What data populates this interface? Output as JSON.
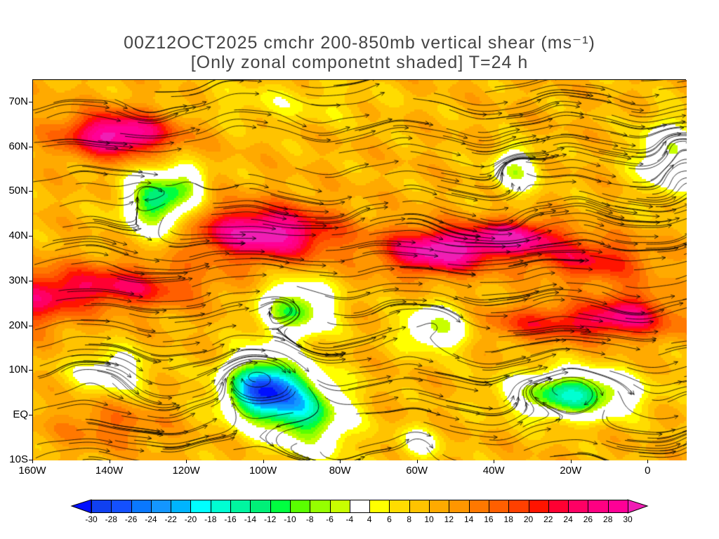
{
  "title": {
    "line1": "00Z12OCT2025 cmchr 200-850mb vertical shear (ms⁻¹)",
    "line2": "[Only zonal componetnt shaded] T=24 h"
  },
  "map": {
    "lon_range": [
      -160,
      10
    ],
    "lat_range": [
      -10,
      75
    ],
    "lat_ticks": [
      {
        "value": 70,
        "label": "70N"
      },
      {
        "value": 60,
        "label": "60N"
      },
      {
        "value": 50,
        "label": "50N"
      },
      {
        "value": 40,
        "label": "40N"
      },
      {
        "value": 30,
        "label": "30N"
      },
      {
        "value": 20,
        "label": "20N"
      },
      {
        "value": 10,
        "label": "10N"
      },
      {
        "value": 0,
        "label": "EQ"
      },
      {
        "value": -10,
        "label": "10S"
      }
    ],
    "lon_ticks": [
      {
        "value": -160,
        "label": "160W"
      },
      {
        "value": -140,
        "label": "140W"
      },
      {
        "value": -120,
        "label": "120W"
      },
      {
        "value": -100,
        "label": "100W"
      },
      {
        "value": -80,
        "label": "80W"
      },
      {
        "value": -60,
        "label": "60W"
      },
      {
        "value": -40,
        "label": "40W"
      },
      {
        "value": -20,
        "label": "20W"
      },
      {
        "value": 0,
        "label": "0"
      }
    ]
  },
  "colorbar": {
    "labels": [
      "-30",
      "-28",
      "-26",
      "-24",
      "-22",
      "-20",
      "-18",
      "-16",
      "-14",
      "-12",
      "-10",
      "-8",
      "-6",
      "-4",
      "4",
      "6",
      "8",
      "10",
      "12",
      "14",
      "16",
      "18",
      "20",
      "22",
      "24",
      "26",
      "28",
      "30"
    ],
    "levels": [
      -30,
      -28,
      -26,
      -24,
      -22,
      -20,
      -18,
      -16,
      -14,
      -12,
      -10,
      -8,
      -6,
      -4,
      4,
      6,
      8,
      10,
      12,
      14,
      16,
      18,
      20,
      22,
      24,
      26,
      28,
      30
    ],
    "colors": [
      "#0010ff",
      "#1040f0",
      "#1450ff",
      "#0a78ff",
      "#1496ff",
      "#00b4ff",
      "#00ffff",
      "#00ffd2",
      "#00f5a0",
      "#00f078",
      "#00ff40",
      "#5aff00",
      "#96ff00",
      "#c8ff00",
      "#ffffff",
      "#ffff00",
      "#ffdc00",
      "#ffc300",
      "#ffaa00",
      "#ff9600",
      "#ff7800",
      "#ff5f00",
      "#ff4000",
      "#ff1400",
      "#ff0032",
      "#ff0064",
      "#ff0082",
      "#ff0096",
      "#f01eb4"
    ]
  }
}
